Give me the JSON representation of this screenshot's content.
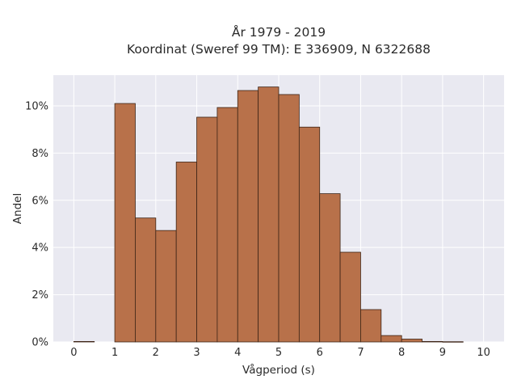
{
  "chart_data": {
    "type": "bar",
    "title_line1": "År 1979 - 2019",
    "title_line2": "Koordinat (Sweref 99 TM): E 336909, N 6322688",
    "xlabel": "Vågperiod (s)",
    "ylabel": "Andel",
    "bin_width": 0.5,
    "bins": [
      {
        "x": 0.0,
        "value": 0.02
      },
      {
        "x": 0.5,
        "value": 0.0
      },
      {
        "x": 1.0,
        "value": 10.1
      },
      {
        "x": 1.5,
        "value": 5.25
      },
      {
        "x": 2.0,
        "value": 4.72
      },
      {
        "x": 2.5,
        "value": 7.62
      },
      {
        "x": 3.0,
        "value": 9.52
      },
      {
        "x": 3.5,
        "value": 9.93
      },
      {
        "x": 4.0,
        "value": 10.65
      },
      {
        "x": 4.5,
        "value": 10.8
      },
      {
        "x": 5.0,
        "value": 10.48
      },
      {
        "x": 5.5,
        "value": 9.1
      },
      {
        "x": 6.0,
        "value": 6.28
      },
      {
        "x": 6.5,
        "value": 3.8
      },
      {
        "x": 7.0,
        "value": 1.37
      },
      {
        "x": 7.5,
        "value": 0.27
      },
      {
        "x": 8.0,
        "value": 0.12
      },
      {
        "x": 8.5,
        "value": 0.02
      },
      {
        "x": 9.0,
        "value": 0.01
      },
      {
        "x": 9.5,
        "value": 0.0
      }
    ],
    "xticks": [
      "0",
      "1",
      "2",
      "3",
      "4",
      "5",
      "6",
      "7",
      "8",
      "9",
      "10"
    ],
    "yticks": [
      "0%",
      "2%",
      "4%",
      "6%",
      "8%",
      "10%"
    ],
    "xlim": [
      -0.5,
      10.5
    ],
    "ylim": [
      0,
      11.3
    ],
    "grid": true,
    "colors": {
      "bar": "#b8714a",
      "bar_edge": "#3d2416",
      "plot_bg": "#e9e9f1",
      "grid": "#ffffff"
    }
  }
}
